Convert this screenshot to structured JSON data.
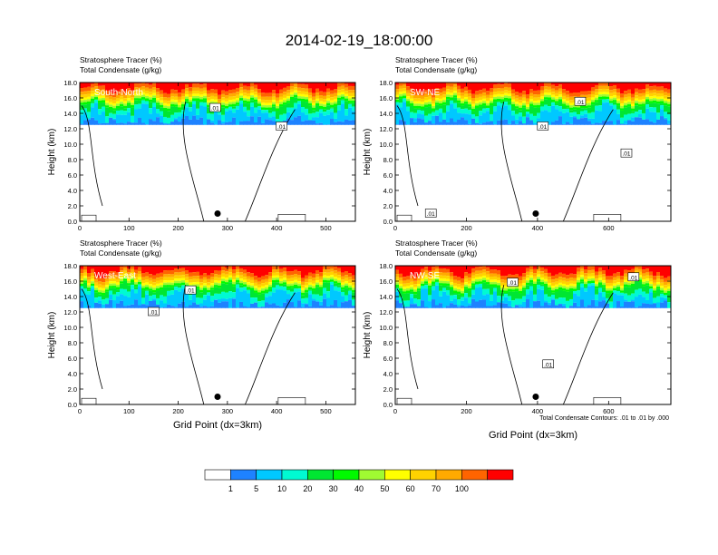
{
  "title": "2014-02-19_18:00:00",
  "panel_labels": {
    "line1": "Stratosphere Tracer   (%)",
    "line2": "Total Condensate   (g/kg)",
    "ylabel": "Height (km)",
    "xlabel": "Grid Point (dx=3km)"
  },
  "contour_note": "Total Condensate Contours: .01 to .01 by .000",
  "contour_label": ".01",
  "colorbar": {
    "colors": [
      "#ffffff",
      "#1e82ff",
      "#00c8ff",
      "#00fad2",
      "#00e632",
      "#00fa00",
      "#a0fa32",
      "#ffff00",
      "#ffd200",
      "#ffaa00",
      "#ff6400",
      "#ff0000"
    ],
    "labels": [
      "1",
      "5",
      "10",
      "20",
      "30",
      "40",
      "50",
      "60",
      "70",
      "100"
    ]
  },
  "chart_data": [
    {
      "type": "heatmap",
      "panel": "South-North",
      "label": "South-North",
      "xlim": [
        0,
        560
      ],
      "ylim": [
        0,
        18
      ],
      "xticks": [
        0,
        100,
        200,
        300,
        400,
        500
      ],
      "yticks": [
        0.0,
        2.0,
        4.0,
        6.0,
        8.0,
        10.0,
        12.0,
        14.0,
        16.0,
        18.0
      ],
      "marker": {
        "x": 280,
        "y": 1.0
      },
      "tracer_layer_km": [
        12.5,
        18.0
      ],
      "contour_labels": [
        {
          "x": 275,
          "y": 14.7
        },
        {
          "x": 410,
          "y": 12.3
        }
      ]
    },
    {
      "type": "heatmap",
      "panel": "SW-NE",
      "label": "SW-NE",
      "xlim": [
        0,
        775
      ],
      "ylim": [
        0,
        18
      ],
      "xticks": [
        0,
        200,
        400,
        600
      ],
      "yticks": [
        0.0,
        2.0,
        4.0,
        6.0,
        8.0,
        10.0,
        12.0,
        14.0,
        16.0,
        18.0
      ],
      "marker": {
        "x": 395,
        "y": 1.0
      },
      "tracer_layer_km": [
        12.5,
        18.0
      ],
      "contour_labels": [
        {
          "x": 100,
          "y": 1.0
        },
        {
          "x": 520,
          "y": 15.5
        },
        {
          "x": 415,
          "y": 12.3
        },
        {
          "x": 650,
          "y": 8.8
        }
      ]
    },
    {
      "type": "heatmap",
      "panel": "West-East",
      "label": "West-East",
      "xlim": [
        0,
        560
      ],
      "ylim": [
        0,
        18
      ],
      "xticks": [
        0,
        100,
        200,
        300,
        400,
        500
      ],
      "yticks": [
        0.0,
        2.0,
        4.0,
        6.0,
        8.0,
        10.0,
        12.0,
        14.0,
        16.0,
        18.0
      ],
      "marker": {
        "x": 280,
        "y": 1.0
      },
      "tracer_layer_km": [
        12.5,
        18.0
      ],
      "contour_labels": [
        {
          "x": 225,
          "y": 14.8
        },
        {
          "x": 150,
          "y": 12.0
        }
      ]
    },
    {
      "type": "heatmap",
      "panel": "NW-SE",
      "label": "NW-SE",
      "xlim": [
        0,
        775
      ],
      "ylim": [
        0,
        18
      ],
      "xticks": [
        0,
        200,
        400,
        600
      ],
      "yticks": [
        0.0,
        2.0,
        4.0,
        6.0,
        8.0,
        10.0,
        12.0,
        14.0,
        16.0,
        18.0
      ],
      "marker": {
        "x": 395,
        "y": 1.0
      },
      "tracer_layer_km": [
        12.5,
        18.0
      ],
      "contour_labels": [
        {
          "x": 330,
          "y": 15.8
        },
        {
          "x": 670,
          "y": 16.5
        },
        {
          "x": 430,
          "y": 5.2
        }
      ]
    }
  ]
}
